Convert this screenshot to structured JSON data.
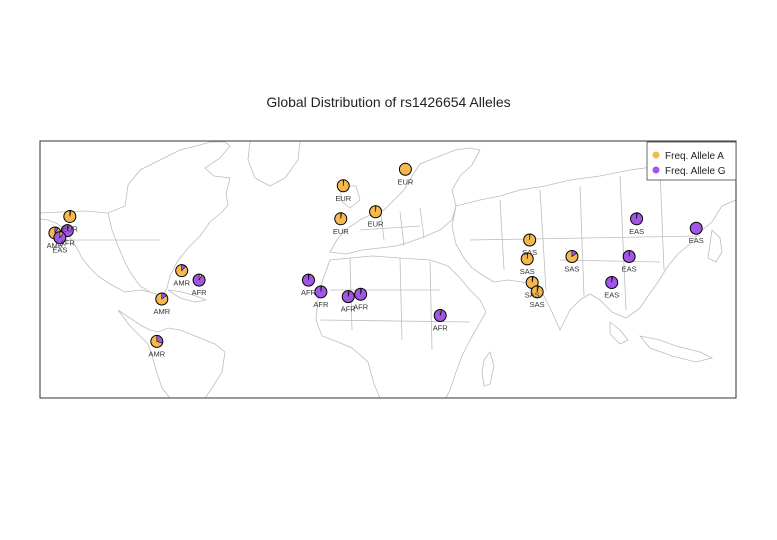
{
  "title": "Global Distribution of rs1426654 Alleles",
  "colors": {
    "allele_a": "#f5b84f",
    "allele_g": "#a256e6",
    "land": "#ffffff",
    "border": "#bdbdbd"
  },
  "legend": [
    {
      "label": "Freq. Allele A",
      "color": "#f5b84f"
    },
    {
      "label": "Freq. Allele G",
      "color": "#a256e6"
    }
  ],
  "chart_data": {
    "type": "map-pie",
    "title": "Global Distribution of rs1426654 Alleles",
    "series": [
      "Freq. Allele A",
      "Freq. Allele G"
    ],
    "populations": [
      {
        "label": "EUR",
        "lon": 23,
        "lat": 61,
        "freq_a": 1.0
      },
      {
        "label": "EUR",
        "lon": -2,
        "lat": 54,
        "freq_a": 0.99
      },
      {
        "label": "EUR",
        "lon": -3,
        "lat": 40,
        "freq_a": 0.98
      },
      {
        "label": "EUR",
        "lon": 11,
        "lat": 43,
        "freq_a": 0.99
      },
      {
        "label": "EUR",
        "lon": -112,
        "lat": 41,
        "freq_a": 0.97
      },
      {
        "label": "AFR",
        "lon": -113,
        "lat": 35,
        "freq_a": 0.05
      },
      {
        "label": "AMR",
        "lon": -118,
        "lat": 34,
        "freq_a": 0.9
      },
      {
        "label": "EAS",
        "lon": -116,
        "lat": 32,
        "freq_a": 0.1
      },
      {
        "label": "AMR",
        "lon": -67,
        "lat": 18,
        "freq_a": 0.88
      },
      {
        "label": "AFR",
        "lon": -60,
        "lat": 14,
        "freq_a": 0.08
      },
      {
        "label": "AMR",
        "lon": -75,
        "lat": 6,
        "freq_a": 0.85
      },
      {
        "label": "AMR",
        "lon": -77,
        "lat": -12,
        "freq_a": 0.7
      },
      {
        "label": "AFR",
        "lon": -16,
        "lat": 14,
        "freq_a": 0.02
      },
      {
        "label": "AFR",
        "lon": -11,
        "lat": 9,
        "freq_a": 0.02
      },
      {
        "label": "AFR",
        "lon": 0,
        "lat": 7,
        "freq_a": 0.03
      },
      {
        "label": "AFR",
        "lon": 5,
        "lat": 8,
        "freq_a": 0.03
      },
      {
        "label": "AFR",
        "lon": 37,
        "lat": -1,
        "freq_a": 0.05
      },
      {
        "label": "SAS",
        "lon": 73,
        "lat": 31,
        "freq_a": 0.99
      },
      {
        "label": "SAS",
        "lon": 72,
        "lat": 23,
        "freq_a": 0.99
      },
      {
        "label": "SAS",
        "lon": 90,
        "lat": 24,
        "freq_a": 0.85
      },
      {
        "label": "SAS",
        "lon": 74,
        "lat": 13,
        "freq_a": 0.97
      },
      {
        "label": "SAS",
        "lon": 76,
        "lat": 9,
        "freq_a": 0.96
      },
      {
        "label": "EAS",
        "lon": 116,
        "lat": 40,
        "freq_a": 0.02
      },
      {
        "label": "EAS",
        "lon": 140,
        "lat": 36,
        "freq_a": 0.0
      },
      {
        "label": "EAS",
        "lon": 113,
        "lat": 24,
        "freq_a": 0.01
      },
      {
        "label": "EAS",
        "lon": 106,
        "lat": 13,
        "freq_a": 0.02
      }
    ]
  }
}
